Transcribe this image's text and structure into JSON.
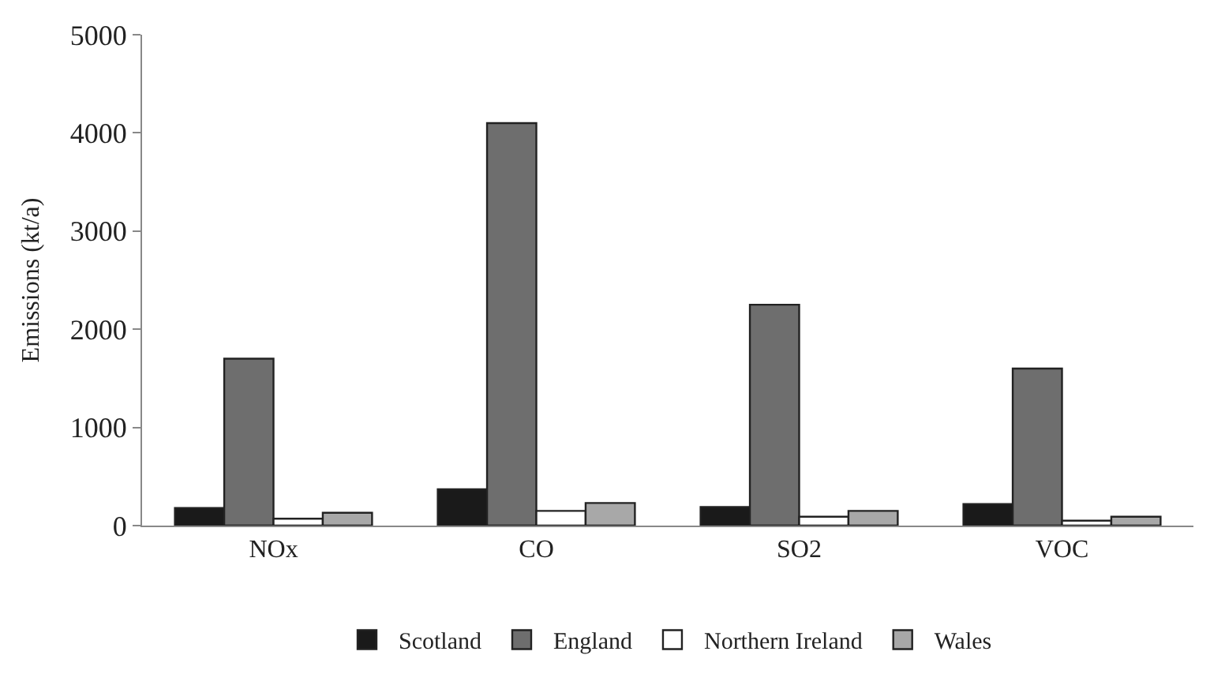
{
  "chart_data": {
    "type": "bar",
    "ylabel": "Emissions (kt/a)",
    "categories": [
      "NOx",
      "CO",
      "SO2",
      "VOC"
    ],
    "series": [
      {
        "name": "Scotland",
        "color": "#1a1a1a",
        "values": [
          180,
          370,
          190,
          220
        ]
      },
      {
        "name": "England",
        "color": "#6e6e6e",
        "values": [
          1700,
          4100,
          2250,
          1600
        ]
      },
      {
        "name": "Northern Ireland",
        "color": "#ffffff",
        "values": [
          70,
          150,
          90,
          50
        ]
      },
      {
        "name": "Wales",
        "color": "#a8a8a8",
        "values": [
          130,
          230,
          150,
          90
        ]
      }
    ],
    "ylim": [
      0,
      5000
    ],
    "yticks": [
      0,
      1000,
      2000,
      3000,
      4000,
      5000
    ],
    "legend": "bottom"
  }
}
